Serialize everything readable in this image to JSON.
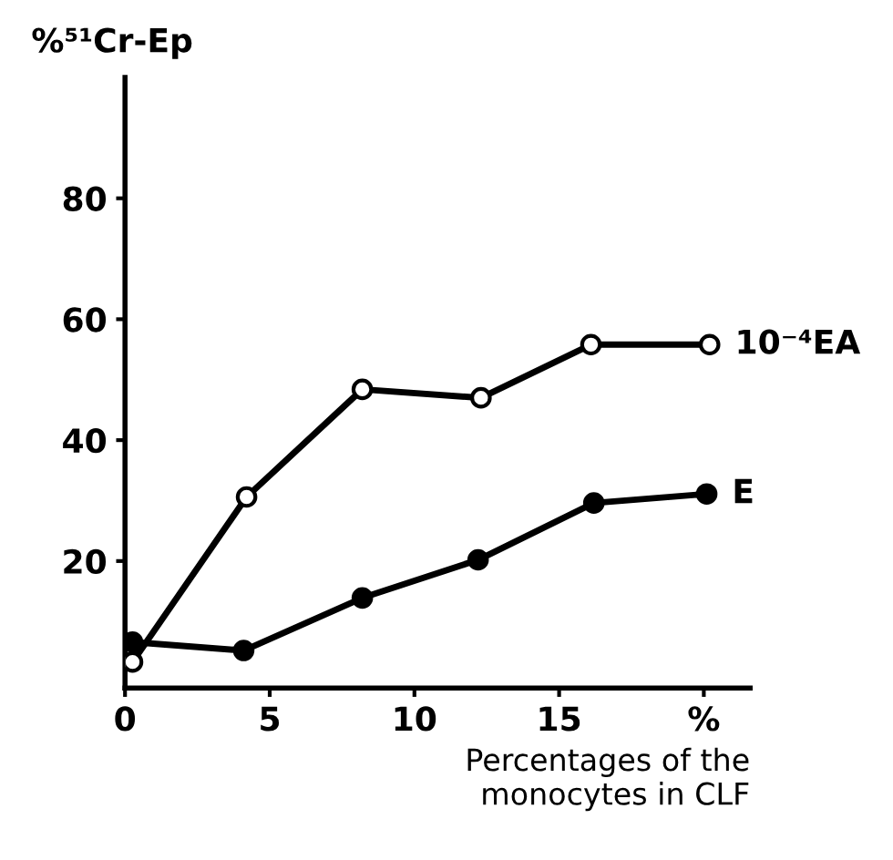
{
  "chart_data": {
    "type": "line",
    "ylabel": "%⁵¹Cr-Ep",
    "xlabel": "Percentages of the\nmonocytes in CLF",
    "xlim": [
      0,
      21.6
    ],
    "ylim": [
      -1,
      100
    ],
    "xticks": [
      0,
      5,
      10,
      15,
      {
        "value": 20,
        "label": "%"
      }
    ],
    "yticks": [
      20,
      40,
      60,
      80
    ],
    "grid": false,
    "legend": false,
    "line_style": "solid",
    "series": [
      {
        "name": "10⁻⁴EA",
        "color": "#000000",
        "marker": "open circle",
        "x": [
          0.26,
          4.2,
          8.2,
          12.3,
          16.1,
          20.2
        ],
        "values": [
          3.3,
          30.6,
          48.4,
          47.0,
          55.8,
          55.8
        ]
      },
      {
        "name": "E",
        "color": "#000000",
        "marker": "circle",
        "x": [
          0.26,
          4.1,
          8.2,
          12.2,
          16.2,
          20.1
        ],
        "values": [
          6.6,
          5.2,
          13.9,
          20.2,
          29.6,
          31.1
        ]
      }
    ]
  }
}
